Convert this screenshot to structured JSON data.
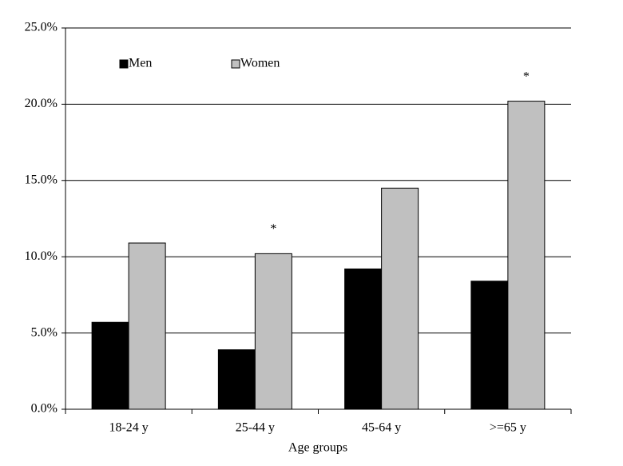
{
  "chart_data": {
    "type": "bar",
    "x_label": "Age groups",
    "categories": [
      "18-24 y",
      "25-44 y",
      "45-64 y",
      ">=65 y"
    ],
    "series": [
      {
        "name": "Men",
        "color": "#000000",
        "values": [
          5.7,
          3.9,
          9.2,
          8.4
        ]
      },
      {
        "name": "Women",
        "color": "#c0c0c0",
        "values": [
          10.9,
          10.2,
          14.5,
          20.2
        ]
      }
    ],
    "ylim": [
      0,
      25
    ],
    "yticks": [
      {
        "value": 0,
        "label": "0.0%"
      },
      {
        "value": 5,
        "label": "5.0%"
      },
      {
        "value": 10,
        "label": "10.0%"
      },
      {
        "value": 15,
        "label": "15.0%"
      },
      {
        "value": 20,
        "label": "20.0%"
      },
      {
        "value": 25,
        "label": "25.0%"
      }
    ],
    "grid": true,
    "legend": "top-left",
    "annotations": [
      {
        "text": "*",
        "category": "25-44 y",
        "series": "Women"
      },
      {
        "text": "*",
        "category": ">=65 y",
        "series": "Women"
      }
    ]
  }
}
